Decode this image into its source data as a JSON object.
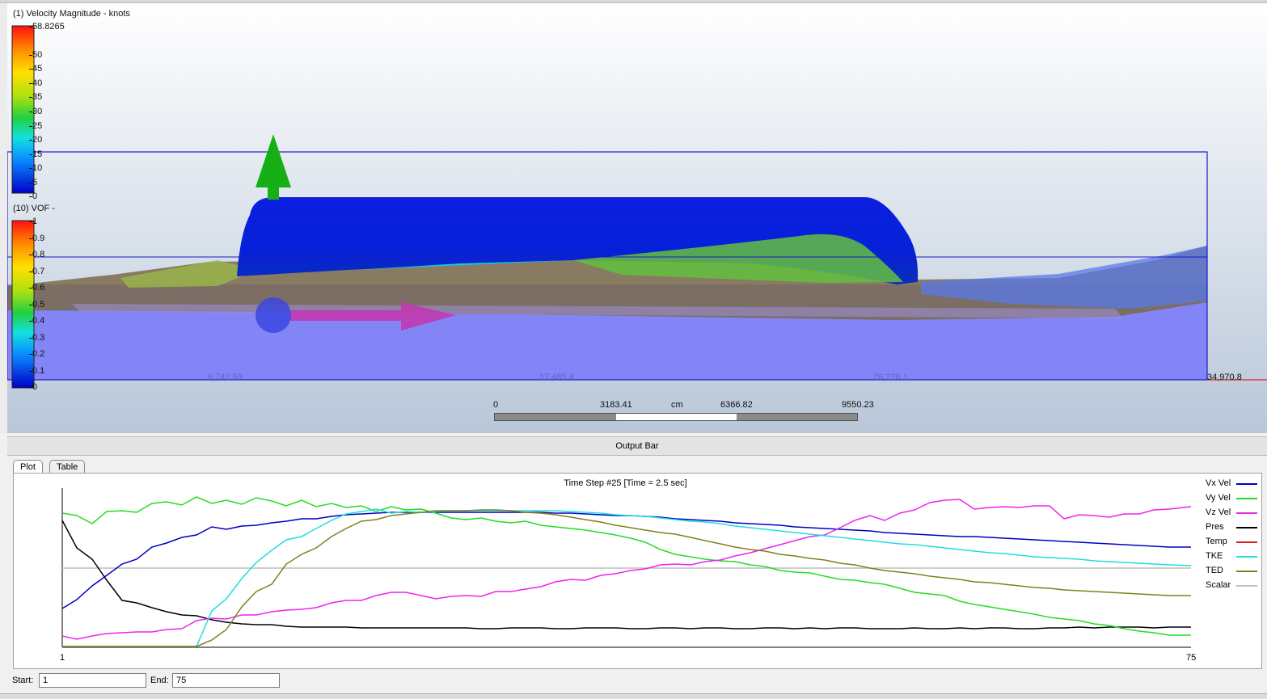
{
  "viewport": {
    "legend_velocity": {
      "title": "(1) Velocity Magnitude - knots",
      "max_label": "58.8265",
      "ticks": [
        "50",
        "45",
        "40",
        "35",
        "30",
        "25",
        "20",
        "15",
        "10",
        "5",
        "0"
      ]
    },
    "legend_vof": {
      "title": "(10) VOF -",
      "ticks": [
        "1",
        "0.9",
        "0.8",
        "0.7",
        "0.6",
        "0.5",
        "0.4",
        "0.3",
        "0.2",
        "0.1",
        "0"
      ]
    },
    "scale_ruler": {
      "labels": [
        "0",
        "3183.41",
        "6366.82",
        "9550.23"
      ],
      "unit": "cm"
    },
    "axis_labels": {
      "a": "8,742.69",
      "b": "17,485.4",
      "c": "26,228.1",
      "end": "34,970.8"
    }
  },
  "output_bar": {
    "title": "Output Bar"
  },
  "tabs": [
    {
      "label": "Plot",
      "active": true
    },
    {
      "label": "Table",
      "active": false
    }
  ],
  "plot": {
    "title": "Time Step #25 [Time = 2.5 sec]",
    "x_start_label": "1",
    "x_end_label": "75",
    "legend": [
      {
        "name": "Vx Vel",
        "color": "#0000c0"
      },
      {
        "name": "Vy Vel",
        "color": "#22dd22"
      },
      {
        "name": "Vz Vel",
        "color": "#ee22ee"
      },
      {
        "name": "Pres",
        "color": "#000000"
      },
      {
        "name": "Temp",
        "color": "#dd2222"
      },
      {
        "name": "TKE",
        "color": "#22dddd"
      },
      {
        "name": "TED",
        "color": "#808020"
      },
      {
        "name": "Scalar",
        "color": "#c0c0c0"
      }
    ]
  },
  "range": {
    "start_label": "Start:",
    "start_value": "1",
    "end_label": "End:",
    "end_value": "75"
  }
}
